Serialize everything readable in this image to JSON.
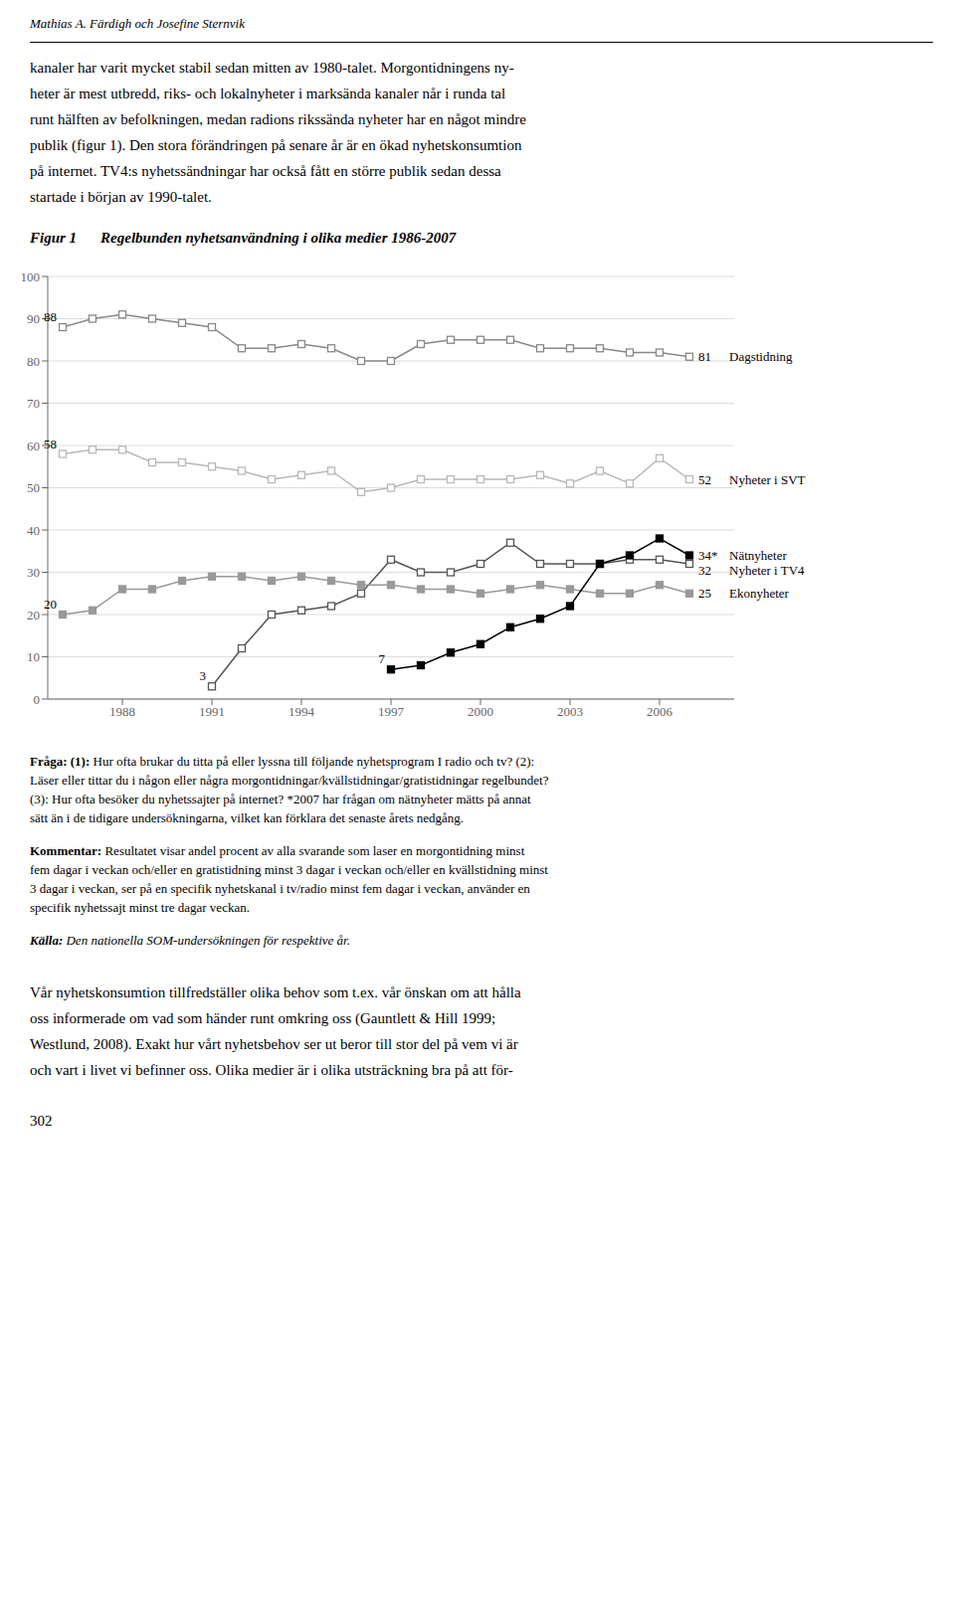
{
  "chart_data": {
    "type": "line",
    "title": "Regelbunden nyhetsanvändning i olika medier 1986-2007",
    "x": [
      1986,
      1987,
      1988,
      1989,
      1990,
      1991,
      1992,
      1993,
      1994,
      1995,
      1996,
      1997,
      1998,
      1999,
      2000,
      2001,
      2002,
      2003,
      2004,
      2005,
      2006,
      2007
    ],
    "series": [
      {
        "name": "Dagstidning",
        "color": "#888888",
        "marker": "open-square",
        "values": [
          88,
          90,
          91,
          90,
          89,
          88,
          83,
          83,
          84,
          83,
          80,
          80,
          84,
          85,
          85,
          85,
          83,
          83,
          83,
          82,
          82,
          81
        ]
      },
      {
        "name": "Nyheter i SVT",
        "color": "#b8b8b8",
        "marker": "open-square",
        "values": [
          58,
          59,
          59,
          56,
          56,
          55,
          54,
          52,
          53,
          54,
          49,
          50,
          52,
          52,
          52,
          52,
          53,
          51,
          54,
          51,
          57,
          52
        ]
      },
      {
        "name": "Nyheter i TV4",
        "color": "#555555",
        "marker": "open-square",
        "values": [
          null,
          null,
          null,
          null,
          null,
          3,
          12,
          20,
          21,
          22,
          25,
          33,
          30,
          30,
          32,
          37,
          32,
          32,
          32,
          33,
          33,
          32
        ]
      },
      {
        "name": "Ekonyheter",
        "color": "#999999",
        "marker": "square",
        "values": [
          20,
          21,
          26,
          26,
          28,
          29,
          29,
          28,
          29,
          28,
          27,
          27,
          26,
          26,
          25,
          26,
          27,
          26,
          25,
          25,
          27,
          25
        ]
      },
      {
        "name": "Nätnyheter",
        "color": "#000000",
        "marker": "square",
        "values": [
          null,
          null,
          null,
          null,
          null,
          null,
          null,
          null,
          null,
          null,
          null,
          7,
          8,
          11,
          13,
          17,
          19,
          22,
          32,
          34,
          38,
          34
        ]
      }
    ],
    "xlim": [
      1985.5,
      2008.5
    ],
    "xticks": [
      1988,
      1991,
      1994,
      1997,
      2000,
      2003,
      2006
    ],
    "ylim": [
      0,
      100
    ],
    "yticks": [
      0,
      10,
      20,
      30,
      40,
      50,
      60,
      70,
      80,
      90,
      100
    ],
    "grid": true,
    "annotations": [
      {
        "text": "81",
        "x": 2007,
        "y": 81
      },
      {
        "text": "52",
        "x": 2007,
        "y": 52
      },
      {
        "text": "34*",
        "x": 2007,
        "y": 34
      },
      {
        "text": "32",
        "x": 2007,
        "y": 32
      },
      {
        "text": "25",
        "x": 2007,
        "y": 25
      },
      {
        "text": "88",
        "x": 1986,
        "y": 88
      },
      {
        "text": "58",
        "x": 1986,
        "y": 58
      },
      {
        "text": "20",
        "x": 1986,
        "y": 20
      },
      {
        "text": "3",
        "x": 1991,
        "y": 3
      },
      {
        "text": "7",
        "x": 1997,
        "y": 7
      }
    ]
  },
  "page": {
    "author": "Mathias A. Färdigh och Josefine Sternvik",
    "header_lines": [
      "kanaler har varit mycket stabil sedan mitten av 1980-talet. Morgontidningens ny-",
      "heter är mest utbredd, riks- och lokalnyheter i marksända kanaler når i runda tal",
      "runt hälften av befolkningen, medan radions rikssända nyheter har en något mindre",
      "publik (figur 1). Den stora förändringen på senare år är en ökad nyhetskonsumtion",
      "på internet. TV4:s nyhetssändningar har också fått en större publik sedan dessa",
      "startade i början av 1990-talet."
    ],
    "figure_label": "Figur 1",
    "notes": [
      {
        "lead": "Fråga: (1):",
        "lines": [
          " Hur ofta brukar du titta på eller lyssna till följande nyhetsprogram I radio och tv? (2):",
          "Läser eller tittar du i någon eller några morgontidningar/kvällstidningar/gratistidningar regelbundet?",
          "(3): Hur ofta besöker du nyhetssajter på internet? *2007 har frågan om nätnyheter mätts på annat",
          "sätt än i de tidigare undersökningarna, vilket kan förklara det senaste årets nedgång."
        ]
      },
      {
        "lead": "Kommentar:",
        "lines": [
          " Resultatet visar andel procent av alla svarande som laser en morgontidning minst",
          "fem dagar i veckan och/eller en gratistidning minst 3 dagar i veckan och/eller en kvällstidning minst",
          "3 dagar i veckan, ser på en specifik nyhetskanal i tv/radio minst fem dagar i veckan, använder en",
          "specifik nyhetssajt minst tre dagar veckan."
        ]
      },
      {
        "lead": "Källa:",
        "lines": [
          " Den nationella SOM-undersökningen för respektive år."
        ]
      }
    ],
    "bottom_lines": [
      "Vår nyhetskonsumtion tillfredställer olika behov som t.ex. vår önskan om att hålla",
      "oss informerade om vad som händer runt omkring oss (Gauntlett & Hill 1999;",
      "Westlund, 2008). Exakt hur vårt nyhetsbehov ser ut beror till stor del på vem vi är",
      "och vart i livet vi befinner oss. Olika medier är i olika utsträckning bra på att för-"
    ],
    "page_number": "302"
  }
}
